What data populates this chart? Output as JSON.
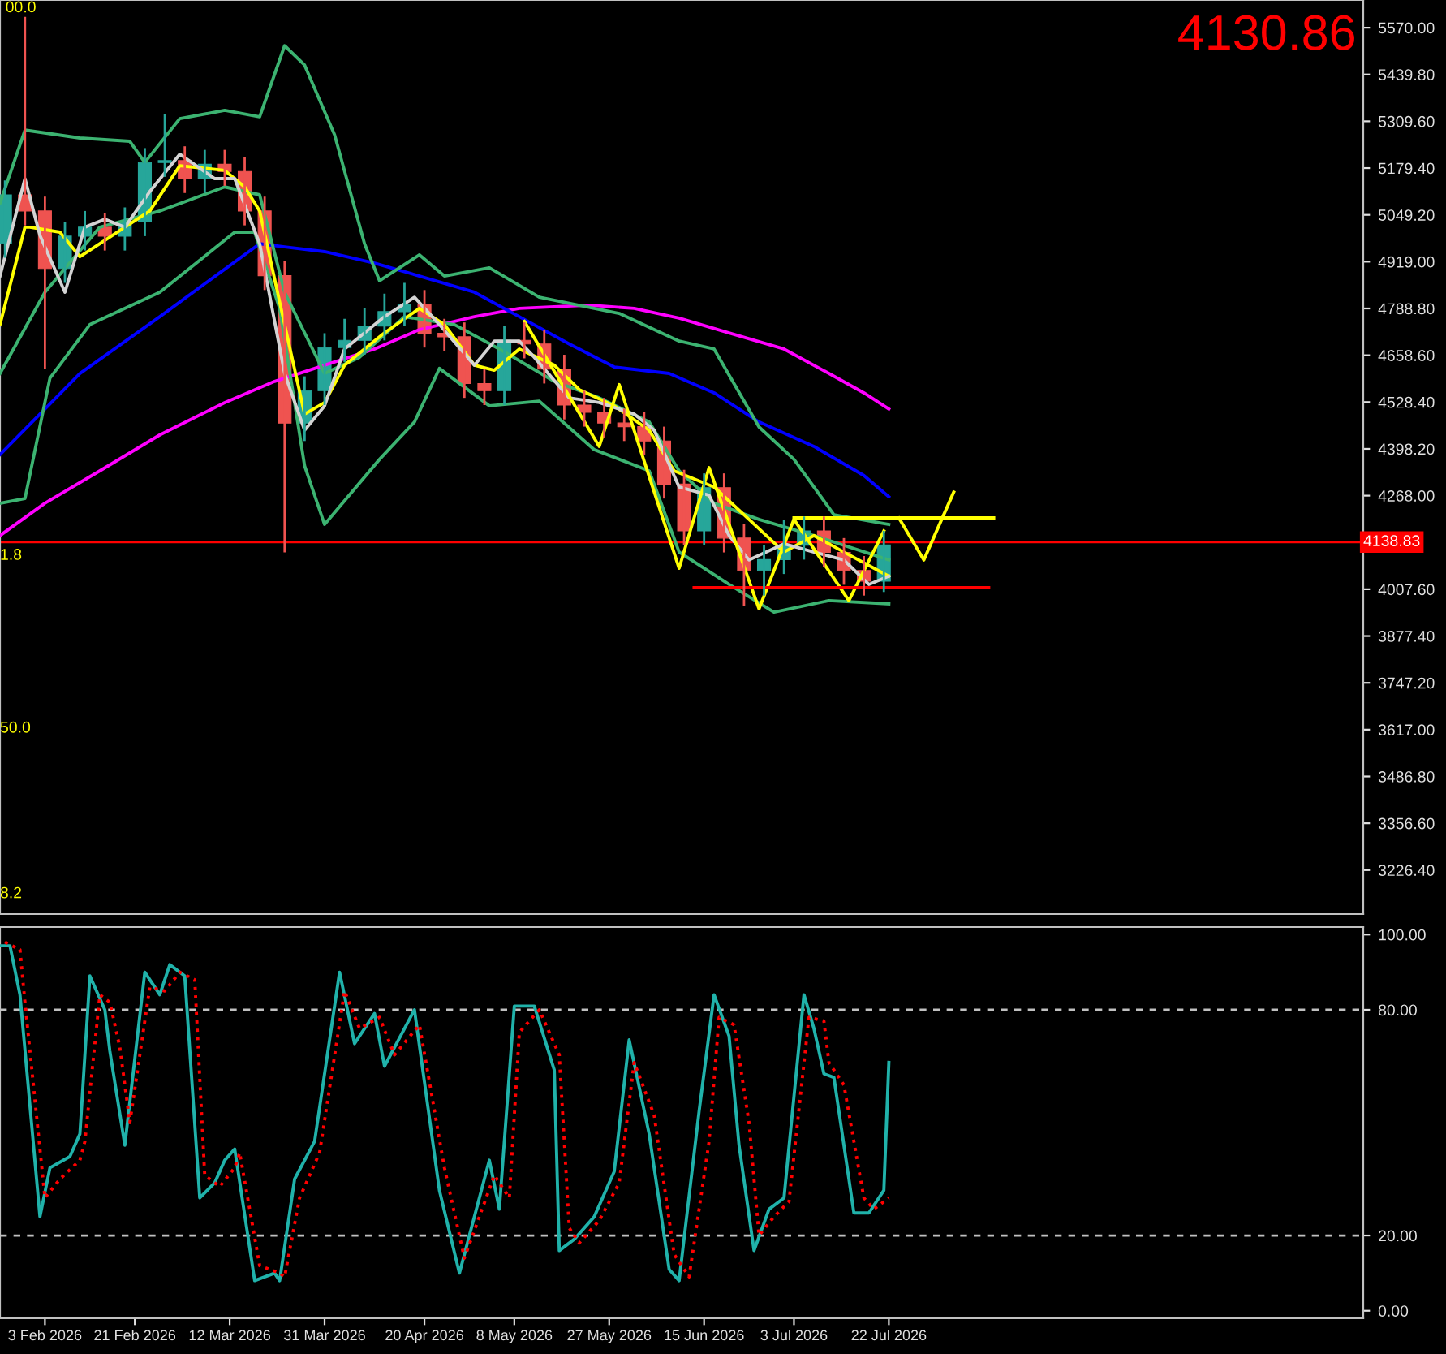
{
  "chart_data": [
    {
      "type": "candlestick",
      "x": [
        "2026-01-26",
        "2026-01-30",
        "2026-02-03",
        "2026-02-07",
        "2026-02-11",
        "2026-02-15",
        "2026-02-19",
        "2026-02-23",
        "2026-02-27",
        "2026-03-03",
        "2026-03-07",
        "2026-03-11",
        "2026-03-15",
        "2026-03-19",
        "2026-03-23",
        "2026-03-27",
        "2026-03-31",
        "2026-04-04",
        "2026-04-08",
        "2026-04-12",
        "2026-04-16",
        "2026-04-20",
        "2026-04-24",
        "2026-04-28",
        "2026-05-02",
        "2026-05-06",
        "2026-05-10",
        "2026-05-14",
        "2026-05-18",
        "2026-05-22",
        "2026-05-26",
        "2026-05-30",
        "2026-06-03",
        "2026-06-07",
        "2026-06-11",
        "2026-06-15",
        "2026-06-19",
        "2026-06-23",
        "2026-06-27",
        "2026-07-01",
        "2026-07-05",
        "2026-07-09",
        "2026-07-13",
        "2026-07-17",
        "2026-07-21"
      ],
      "ohlc": [
        [
          4970,
          5145,
          4930,
          5105
        ],
        [
          5105,
          5600,
          5020,
          5060
        ],
        [
          5060,
          5100,
          4620,
          4900
        ],
        [
          4900,
          5030,
          4860,
          4990
        ],
        [
          4990,
          5060,
          4950,
          5015
        ],
        [
          5015,
          5055,
          4950,
          4990
        ],
        [
          4990,
          5070,
          4950,
          5030
        ],
        [
          5030,
          5235,
          4990,
          5195
        ],
        [
          5195,
          5330,
          5155,
          5200
        ],
        [
          5200,
          5240,
          5110,
          5150
        ],
        [
          5150,
          5230,
          5110,
          5190
        ],
        [
          5190,
          5230,
          5130,
          5170
        ],
        [
          5170,
          5210,
          5020,
          5060
        ],
        [
          5060,
          5100,
          4840,
          4880
        ],
        [
          4880,
          4920,
          4110,
          4470
        ],
        [
          4470,
          4600,
          4420,
          4560
        ],
        [
          4560,
          4720,
          4520,
          4680
        ],
        [
          4680,
          4760,
          4640,
          4700
        ],
        [
          4700,
          4790,
          4660,
          4740
        ],
        [
          4740,
          4830,
          4700,
          4780
        ],
        [
          4780,
          4860,
          4740,
          4800
        ],
        [
          4800,
          4840,
          4680,
          4720
        ],
        [
          4720,
          4760,
          4670,
          4710
        ],
        [
          4710,
          4750,
          4540,
          4580
        ],
        [
          4580,
          4620,
          4520,
          4560
        ],
        [
          4560,
          4740,
          4520,
          4700
        ],
        [
          4700,
          4750,
          4650,
          4690
        ],
        [
          4690,
          4730,
          4580,
          4620
        ],
        [
          4620,
          4660,
          4480,
          4520
        ],
        [
          4520,
          4560,
          4460,
          4500
        ],
        [
          4500,
          4540,
          4430,
          4470
        ],
        [
          4470,
          4510,
          4420,
          4460
        ],
        [
          4460,
          4500,
          4380,
          4420
        ],
        [
          4420,
          4460,
          4260,
          4300
        ],
        [
          4300,
          4340,
          4130,
          4170
        ],
        [
          4170,
          4330,
          4130,
          4290
        ],
        [
          4290,
          4330,
          4110,
          4150
        ],
        [
          4150,
          4190,
          3960,
          4060
        ],
        [
          4060,
          4130,
          3990,
          4090
        ],
        [
          4090,
          4200,
          4050,
          4130
        ],
        [
          4130,
          4210,
          4090,
          4170
        ],
        [
          4170,
          4210,
          4070,
          4110
        ],
        [
          4110,
          4150,
          4020,
          4060
        ],
        [
          4060,
          4100,
          3990,
          4030
        ],
        [
          4030,
          4170,
          4000,
          4131
        ]
      ],
      "colors": [
        "#26a69a",
        "#ef5350",
        "#ef5350",
        "#26a69a",
        "#26a69a",
        "#ef5350",
        "#26a69a",
        "#26a69a",
        "#26a69a",
        "#ef5350",
        "#26a69a",
        "#ef5350",
        "#ef5350",
        "#ef5350",
        "#ef5350",
        "#26a69a",
        "#26a69a",
        "#26a69a",
        "#26a69a",
        "#26a69a",
        "#26a69a",
        "#ef5350",
        "#ef5350",
        "#ef5350",
        "#ef5350",
        "#26a69a",
        "#ef5350",
        "#ef5350",
        "#ef5350",
        "#ef5350",
        "#ef5350",
        "#ef5350",
        "#ef5350",
        "#ef5350",
        "#ef5350",
        "#26a69a",
        "#ef5350",
        "#ef5350",
        "#26a69a",
        "#26a69a",
        "#26a69a",
        "#ef5350",
        "#ef5350",
        "#ef5350",
        "#26a69a"
      ],
      "series": [
        {
          "type": "line",
          "color": "#ff00ff",
          "x": [
            "2026-01-25",
            "2026-02-03",
            "2026-02-14",
            "2026-02-26",
            "2026-03-11",
            "2026-03-21",
            "2026-03-31",
            "2026-04-10",
            "2026-04-19",
            "2026-04-30",
            "2026-05-09",
            "2026-05-23",
            "2026-06-01",
            "2026-06-10",
            "2026-06-20",
            "2026-07-01",
            "2026-07-10",
            "2026-07-17",
            "2026-07-22"
          ],
          "values": [
            4157,
            4247,
            4337,
            4437,
            4527,
            4586,
            4631,
            4676,
            4730,
            4766,
            4789,
            4798,
            4789,
            4762,
            4721,
            4676,
            4608,
            4554,
            4509
          ]
        },
        {
          "type": "line",
          "color": "#0000ff",
          "x": [
            "2026-01-25",
            "2026-02-02",
            "2026-02-10",
            "2026-02-26",
            "2026-03-10",
            "2026-03-18",
            "2026-03-23",
            "2026-03-31",
            "2026-04-10",
            "2026-04-19",
            "2026-04-30",
            "2026-05-09",
            "2026-05-19",
            "2026-05-28",
            "2026-06-08",
            "2026-06-17",
            "2026-06-26",
            "2026-07-07",
            "2026-07-17",
            "2026-07-22"
          ],
          "values": [
            4382,
            4495,
            4608,
            4766,
            4888,
            4969,
            4960,
            4947,
            4915,
            4879,
            4834,
            4766,
            4690,
            4626,
            4608,
            4554,
            4473,
            4405,
            4324,
            4265
          ]
        },
        {
          "type": "line",
          "color": "#3cb371",
          "x": [
            "2026-01-25",
            "2026-01-30",
            "2026-02-10",
            "2026-02-20",
            "2026-02-23",
            "2026-03-02",
            "2026-03-11",
            "2026-03-18",
            "2026-03-23",
            "2026-03-27",
            "2026-04-02",
            "2026-04-08",
            "2026-04-11",
            "2026-04-19",
            "2026-04-24",
            "2026-05-03",
            "2026-05-13",
            "2026-05-29",
            "2026-06-10",
            "2026-06-17",
            "2026-06-26",
            "2026-07-03",
            "2026-07-11",
            "2026-07-22"
          ],
          "values": [
            5082,
            5285,
            5263,
            5254,
            5195,
            5317,
            5340,
            5322,
            5520,
            5466,
            5272,
            4969,
            4866,
            4938,
            4879,
            4902,
            4820,
            4775,
            4698,
            4676,
            4459,
            4369,
            4215,
            4188
          ]
        },
        {
          "type": "line",
          "color": "#3cb371",
          "x": [
            "2026-01-25",
            "2026-02-03",
            "2026-02-14",
            "2026-02-26",
            "2026-03-11",
            "2026-03-18",
            "2026-03-23",
            "2026-03-31",
            "2026-04-07",
            "2026-04-16",
            "2026-04-26",
            "2026-05-05",
            "2026-05-16",
            "2026-05-25",
            "2026-06-04",
            "2026-06-10",
            "2026-06-17",
            "2026-06-26",
            "2026-07-07",
            "2026-07-22"
          ],
          "values": [
            4608,
            4834,
            5015,
            5060,
            5127,
            5105,
            4834,
            4608,
            4653,
            4766,
            4744,
            4676,
            4586,
            4540,
            4473,
            4337,
            4247,
            4202,
            4157,
            4089
          ]
        },
        {
          "type": "line",
          "color": "#3cb371",
          "x": [
            "2026-01-25",
            "2026-01-30",
            "2026-02-04",
            "2026-02-12",
            "2026-02-26",
            "2026-03-13",
            "2026-03-17",
            "2026-03-22",
            "2026-03-27",
            "2026-03-31",
            "2026-04-11",
            "2026-04-18",
            "2026-04-23",
            "2026-05-03",
            "2026-05-13",
            "2026-05-24",
            "2026-06-04",
            "2026-06-10",
            "2026-06-20",
            "2026-06-29",
            "2026-07-10",
            "2026-07-22"
          ],
          "values": [
            4247,
            4260,
            4595,
            4744,
            4834,
            5001,
            5001,
            4789,
            4351,
            4188,
            4369,
            4473,
            4622,
            4518,
            4531,
            4396,
            4337,
            4111,
            4021,
            3944,
            3976,
            3967
          ]
        },
        {
          "type": "line",
          "color": "#ffff00",
          "x": [
            "2026-01-25",
            "2026-01-30",
            "2026-01-31",
            "2026-02-06",
            "2026-02-10",
            "2026-02-14",
            "2026-02-19",
            "2026-02-24",
            "2026-03-02",
            "2026-03-11",
            "2026-03-15",
            "2026-03-18",
            "2026-03-23",
            "2026-03-27",
            "2026-03-31",
            "2026-04-04",
            "2026-04-12",
            "2026-04-19",
            "2026-04-24",
            "2026-04-30",
            "2026-05-04",
            "2026-05-09",
            "2026-05-16",
            "2026-05-21",
            "2026-05-28",
            "2026-06-04",
            "2026-06-09",
            "2026-06-17",
            "2026-06-24",
            "2026-07-01",
            "2026-07-07",
            "2026-07-13",
            "2026-07-22"
          ],
          "values": [
            4744,
            5015,
            5015,
            5001,
            4933,
            4969,
            5015,
            5060,
            5186,
            5173,
            5127,
            5060,
            4744,
            4495,
            4527,
            4631,
            4721,
            4789,
            4744,
            4631,
            4617,
            4676,
            4631,
            4563,
            4518,
            4450,
            4337,
            4292,
            4202,
            4111,
            4157,
            4111,
            4044
          ]
        },
        {
          "type": "line",
          "color": "#d3d3d3",
          "x": [
            "2026-01-25",
            "2026-01-30",
            "2026-02-02",
            "2026-02-07",
            "2026-02-11",
            "2026-02-15",
            "2026-02-19",
            "2026-02-24",
            "2026-03-02",
            "2026-03-09",
            "2026-03-13",
            "2026-03-18",
            "2026-03-23",
            "2026-03-27",
            "2026-03-31",
            "2026-04-04",
            "2026-04-12",
            "2026-04-18",
            "2026-04-23",
            "2026-04-30",
            "2026-05-04",
            "2026-05-09",
            "2026-05-12",
            "2026-05-19",
            "2026-05-25",
            "2026-06-01",
            "2026-06-05",
            "2026-06-10",
            "2026-06-16",
            "2026-06-20",
            "2026-06-24",
            "2026-07-01",
            "2026-07-07",
            "2026-07-13",
            "2026-07-18",
            "2026-07-22"
          ],
          "values": [
            4879,
            5150,
            4992,
            4834,
            5015,
            5037,
            5015,
            5114,
            5218,
            5150,
            5150,
            4969,
            4608,
            4450,
            4518,
            4676,
            4766,
            4820,
            4744,
            4631,
            4698,
            4698,
            4653,
            4540,
            4527,
            4495,
            4450,
            4292,
            4269,
            4157,
            4089,
            4134,
            4111,
            4089,
            4021,
            4044
          ]
        },
        {
          "type": "line",
          "color": "#ffff00",
          "x": [
            "2026-05-10",
            "2026-05-25",
            "2026-05-29",
            "2026-06-10",
            "2026-06-16",
            "2026-06-26",
            "2026-07-03",
            "2026-07-14",
            "2026-07-21"
          ],
          "values": [
            4753,
            4405,
            4577,
            4066,
            4346,
            3953,
            4202,
            3976,
            4170
          ]
        },
        {
          "type": "line",
          "color": "#ffff00",
          "x": [
            "2026-07-03",
            "2026-08-12"
          ],
          "values": [
            4206,
            4206
          ]
        },
        {
          "type": "line",
          "color": "#ffff00",
          "x": [
            "2026-07-24",
            "2026-07-29",
            "2026-08-04"
          ],
          "values": [
            4206,
            4089,
            4278
          ]
        },
        {
          "type": "line",
          "color": "#ff0000",
          "x": [
            "2026-06-13",
            "2026-08-11"
          ],
          "values": [
            4012,
            4012
          ]
        }
      ],
      "xlim": [
        "2026-01-25",
        "2026-10-25"
      ],
      "ylim": [
        3104,
        5647
      ],
      "yticks": [
        {
          "value": 5570.0,
          "label": "5570.00"
        },
        {
          "value": 5439.8,
          "label": "5439.80"
        },
        {
          "value": 5309.6,
          "label": "5309.60"
        },
        {
          "value": 5179.4,
          "label": "5179.40"
        },
        {
          "value": 5049.2,
          "label": "5049.20"
        },
        {
          "value": 4919.0,
          "label": "4919.00"
        },
        {
          "value": 4788.8,
          "label": "4788.80"
        },
        {
          "value": 4658.6,
          "label": "4658.60"
        },
        {
          "value": 4528.4,
          "label": "4528.40"
        },
        {
          "value": 4398.2,
          "label": "4398.20"
        },
        {
          "value": 4268.0,
          "label": "4268.00"
        },
        {
          "value": 4007.6,
          "label": "4007.60"
        },
        {
          "value": 3877.4,
          "label": "3877.40"
        },
        {
          "value": 3747.2,
          "label": "3747.20"
        },
        {
          "value": 3617.0,
          "label": "3617.00"
        },
        {
          "value": 3486.8,
          "label": "3486.80"
        },
        {
          "value": 3356.6,
          "label": "3356.60"
        },
        {
          "value": 3226.4,
          "label": "3226.40"
        }
      ],
      "tick_labels": "y",
      "ref_lines": [
        {
          "axis": "y",
          "value": 4138.83,
          "label": "4138.83",
          "color": "#ff0000"
        }
      ],
      "annotations": [
        "4130.86",
        "00.0",
        "1.8",
        "50.0",
        "8.2"
      ],
      "grid": false
    },
    {
      "type": "line",
      "series": [
        {
          "color": "#20b2aa",
          "line_style": "solid",
          "x": [
            "2026-01-25",
            "2026-01-27",
            "2026-01-29",
            "2026-02-02",
            "2026-02-04",
            "2026-02-08",
            "2026-02-10",
            "2026-02-12",
            "2026-02-15",
            "2026-02-16",
            "2026-02-19",
            "2026-02-23",
            "2026-02-26",
            "2026-02-28",
            "2026-03-03",
            "2026-03-06",
            "2026-03-09",
            "2026-03-11",
            "2026-03-13",
            "2026-03-17",
            "2026-03-21",
            "2026-03-22",
            "2026-03-25",
            "2026-03-29",
            "2026-04-03",
            "2026-04-06",
            "2026-04-10",
            "2026-04-12",
            "2026-04-18",
            "2026-04-23",
            "2026-04-27",
            "2026-05-03",
            "2026-05-05",
            "2026-05-08",
            "2026-05-12",
            "2026-05-16",
            "2026-05-17",
            "2026-05-20",
            "2026-05-24",
            "2026-05-28",
            "2026-05-31",
            "2026-06-04",
            "2026-06-08",
            "2026-06-10",
            "2026-06-14",
            "2026-06-17",
            "2026-06-20",
            "2026-06-22",
            "2026-06-25",
            "2026-06-28",
            "2026-07-01",
            "2026-07-05",
            "2026-07-07",
            "2026-07-09",
            "2026-07-11",
            "2026-07-15",
            "2026-07-18",
            "2026-07-21",
            "2026-07-22"
          ],
          "values": [
            97,
            97,
            84,
            25,
            38,
            41,
            47,
            89,
            80,
            69,
            44,
            90,
            84,
            92,
            89,
            30,
            34,
            40,
            43,
            8,
            10,
            8,
            35,
            45,
            90,
            71,
            79,
            65,
            80,
            32,
            10,
            40,
            27,
            81,
            81,
            64,
            16,
            19,
            25,
            37,
            72,
            47,
            11,
            8,
            53,
            84,
            73,
            44,
            16,
            27,
            30,
            84,
            75,
            63,
            62,
            26,
            26,
            32,
            66
          ]
        },
        {
          "color": "#ff0000",
          "line_style": "dotted",
          "x": [
            "2026-01-26",
            "2026-01-29",
            "2026-01-30",
            "2026-02-03",
            "2026-02-06",
            "2026-02-10",
            "2026-02-11",
            "2026-02-14",
            "2026-02-16",
            "2026-02-18",
            "2026-02-20",
            "2026-02-24",
            "2026-02-27",
            "2026-03-02",
            "2026-03-05",
            "2026-03-07",
            "2026-03-10",
            "2026-03-13",
            "2026-03-14",
            "2026-03-18",
            "2026-03-22",
            "2026-03-23",
            "2026-03-26",
            "2026-03-30",
            "2026-04-04",
            "2026-04-07",
            "2026-04-11",
            "2026-04-14",
            "2026-04-19",
            "2026-04-24",
            "2026-04-28",
            "2026-05-04",
            "2026-05-07",
            "2026-05-09",
            "2026-05-13",
            "2026-05-17",
            "2026-05-19",
            "2026-05-21",
            "2026-05-25",
            "2026-05-29",
            "2026-06-01",
            "2026-06-05",
            "2026-06-09",
            "2026-06-12",
            "2026-06-16",
            "2026-06-18",
            "2026-06-21",
            "2026-06-24",
            "2026-06-26",
            "2026-06-29",
            "2026-07-02",
            "2026-07-06",
            "2026-07-09",
            "2026-07-10",
            "2026-07-13",
            "2026-07-17",
            "2026-07-19",
            "2026-07-22"
          ],
          "values": [
            98,
            96,
            82,
            30,
            35,
            40,
            45,
            84,
            82,
            70,
            50,
            86,
            85,
            90,
            88,
            36,
            33,
            38,
            42,
            12,
            10,
            9,
            30,
            42,
            85,
            75,
            78,
            68,
            76,
            38,
            14,
            36,
            30,
            74,
            80,
            68,
            22,
            18,
            24,
            34,
            66,
            52,
            15,
            9,
            45,
            78,
            76,
            50,
            20,
            25,
            29,
            78,
            77,
            66,
            60,
            30,
            27,
            30
          ]
        }
      ],
      "xlim": [
        "2026-01-25",
        "2026-10-25"
      ],
      "xticks": [
        {
          "value": "2026-02-03",
          "label": "3 Feb 2026"
        },
        {
          "value": "2026-02-21",
          "label": "21 Feb 2026"
        },
        {
          "value": "2026-03-12",
          "label": "12 Mar 2026"
        },
        {
          "value": "2026-03-31",
          "label": "31 Mar 2026"
        },
        {
          "value": "2026-04-20",
          "label": "20 Apr 2026"
        },
        {
          "value": "2026-05-08",
          "label": "8 May 2026"
        },
        {
          "value": "2026-05-27",
          "label": "27 May 2026"
        },
        {
          "value": "2026-06-15",
          "label": "15 Jun 2026"
        },
        {
          "value": "2026-07-03",
          "label": "3 Jul 2026"
        },
        {
          "value": "2026-07-22",
          "label": "22 Jul 2026"
        }
      ],
      "ylim": [
        -2,
        102
      ],
      "yticks": [
        {
          "value": 0,
          "label": "0.00"
        },
        {
          "value": 20,
          "label": "20.00"
        },
        {
          "value": 80,
          "label": "80.00"
        },
        {
          "value": 100,
          "label": "100.00"
        }
      ],
      "ref_lines": [
        {
          "axis": "y",
          "value": 20,
          "color": "#c0c0c0",
          "line_style": "dashed"
        },
        {
          "axis": "y",
          "value": 80,
          "color": "#c0c0c0",
          "line_style": "dashed"
        }
      ],
      "grid": false
    }
  ]
}
